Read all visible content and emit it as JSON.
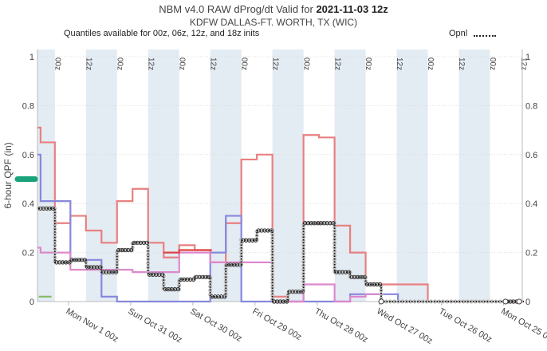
{
  "header": {
    "title_prefix": "NBM v4.0 RAW dProg/dt Valid for ",
    "title_bold": "2021-11-03 12z",
    "subtitle": "KDFW DALLAS-FT. WORTH, TX (WIC)",
    "note": "Quantiles available for 00z, 06z, 12z, and 18z inits",
    "legend_opnl": "Opnl"
  },
  "chart_data": {
    "type": "line",
    "ylabel": "6-hour QPF (in)",
    "ylim": [
      0,
      1
    ],
    "yticks": [
      "0",
      "0.2",
      "0.4",
      "0.6",
      "0.8",
      "1"
    ],
    "x_reversed": true,
    "x_tick_labels": [
      "Mon Nov 1 00z",
      "Sun Oct 31 00z",
      "Sat Oct 30 00z",
      "Fri Oct 29 00z",
      "Thu Oct 28 00z",
      "Wed Oct 27 00z",
      "Tue Oct 26 00z",
      "Mon Oct 25 00z"
    ],
    "x_tick_positions_day": [
      2,
      3,
      4,
      5,
      6,
      7,
      8,
      9
    ],
    "xlim_days_before_valid": [
      1.5,
      9.3
    ],
    "init_labels": [
      {
        "d": 1.75,
        "text": "00z"
      },
      {
        "d": 2.25,
        "text": "12z"
      },
      {
        "d": 2.75,
        "text": "00z"
      },
      {
        "d": 3.25,
        "text": "12z"
      },
      {
        "d": 3.75,
        "text": "00z"
      },
      {
        "d": 4.25,
        "text": "12z"
      },
      {
        "d": 4.75,
        "text": "00z"
      },
      {
        "d": 5.25,
        "text": "12z"
      },
      {
        "d": 5.75,
        "text": "00z"
      },
      {
        "d": 6.25,
        "text": "12z"
      },
      {
        "d": 6.75,
        "text": "00z"
      },
      {
        "d": 7.25,
        "text": "12z"
      },
      {
        "d": 7.75,
        "text": "00z"
      },
      {
        "d": 8.25,
        "text": "12z"
      },
      {
        "d": 8.75,
        "text": "00z"
      },
      {
        "d": 9.25,
        "text": "12z"
      }
    ],
    "shaded_bands": [
      [
        1.5,
        1.78
      ],
      [
        2.28,
        2.78
      ],
      [
        3.28,
        3.78
      ],
      [
        4.28,
        4.78
      ],
      [
        5.28,
        5.78
      ],
      [
        6.28,
        6.78
      ],
      [
        7.28,
        7.78
      ],
      [
        8.28,
        8.78
      ]
    ],
    "current_value_marker": 0.5,
    "series": [
      {
        "color": "#e88080",
        "steps": [
          [
            1.5,
            0.71
          ],
          [
            1.55,
            0.65
          ],
          [
            1.78,
            0.32
          ],
          [
            2.03,
            0.35
          ],
          [
            2.28,
            0.29
          ],
          [
            2.53,
            0.24
          ],
          [
            2.78,
            0.41
          ],
          [
            3.03,
            0.46
          ],
          [
            3.28,
            0.24
          ],
          [
            3.53,
            0.18
          ],
          [
            3.78,
            0.23
          ],
          [
            4.03,
            0.21
          ],
          [
            4.28,
            0.16
          ],
          [
            4.53,
            0.32
          ],
          [
            4.78,
            0.58
          ],
          [
            5.03,
            0.6
          ],
          [
            5.28,
            0.02
          ],
          [
            5.53,
            0.0
          ],
          [
            5.78,
            0.68
          ],
          [
            6.03,
            0.67
          ],
          [
            6.28,
            0.31
          ],
          [
            6.53,
            0.2
          ],
          [
            6.78,
            0.07
          ],
          [
            7.0,
            0.07
          ],
          [
            7.78,
            0.0
          ],
          [
            8.03,
            0.0
          ],
          [
            9.3,
            0.0
          ]
        ]
      },
      {
        "color": "#8888dd",
        "steps": [
          [
            1.5,
            0.6
          ],
          [
            1.55,
            0.41
          ],
          [
            1.78,
            0.41
          ],
          [
            2.03,
            0.17
          ],
          [
            2.28,
            0.17
          ],
          [
            2.53,
            0.02
          ],
          [
            2.78,
            0.0
          ],
          [
            3.53,
            0.0
          ],
          [
            4.28,
            0.2
          ],
          [
            4.53,
            0.35
          ],
          [
            4.78,
            0.0
          ],
          [
            5.28,
            0.0
          ],
          [
            6.28,
            0.0
          ],
          [
            6.53,
            0.03
          ],
          [
            6.78,
            0.03
          ],
          [
            7.3,
            0.0
          ]
        ]
      },
      {
        "color": "#dd88cc",
        "steps": [
          [
            1.5,
            0.22
          ],
          [
            1.55,
            0.2
          ],
          [
            1.78,
            0.2
          ],
          [
            2.03,
            0.13
          ],
          [
            2.28,
            0.13
          ],
          [
            2.53,
            0.13
          ],
          [
            2.78,
            0.13
          ],
          [
            3.03,
            0.12
          ],
          [
            3.28,
            0.12
          ],
          [
            3.53,
            0.12
          ],
          [
            3.78,
            0.2
          ],
          [
            4.03,
            0.2
          ],
          [
            4.28,
            0.16
          ],
          [
            4.53,
            0.16
          ],
          [
            4.78,
            0.16
          ],
          [
            5.03,
            0.16
          ],
          [
            5.28,
            0.0
          ],
          [
            5.53,
            0.0
          ],
          [
            5.78,
            0.07
          ],
          [
            6.03,
            0.07
          ],
          [
            6.28,
            0.0
          ],
          [
            6.53,
            0.02
          ],
          [
            6.78,
            0.03
          ],
          [
            7.0,
            0.03
          ]
        ]
      },
      {
        "color": "#dd4444",
        "steps": [
          [
            3.53,
            0.2
          ],
          [
            3.78,
            0.21
          ],
          [
            4.03,
            0.21
          ],
          [
            4.28,
            0.21
          ]
        ]
      },
      {
        "color": "#88bb66",
        "steps": [
          [
            1.52,
            0.02
          ],
          [
            1.7,
            0.02
          ]
        ]
      }
    ],
    "opnl": {
      "color": "#111111",
      "steps": [
        [
          1.52,
          0.38
        ],
        [
          1.78,
          0.16
        ],
        [
          2.03,
          0.17
        ],
        [
          2.28,
          0.14
        ],
        [
          2.53,
          0.12
        ],
        [
          2.78,
          0.21
        ],
        [
          3.03,
          0.24
        ],
        [
          3.28,
          0.11
        ],
        [
          3.53,
          0.05
        ],
        [
          3.78,
          0.09
        ],
        [
          4.03,
          0.1
        ],
        [
          4.28,
          0.02
        ],
        [
          4.53,
          0.15
        ],
        [
          4.78,
          0.25
        ],
        [
          5.03,
          0.29
        ],
        [
          5.28,
          0.0
        ],
        [
          5.53,
          0.04
        ],
        [
          5.78,
          0.32
        ],
        [
          6.03,
          0.32
        ],
        [
          6.28,
          0.12
        ],
        [
          6.53,
          0.1
        ],
        [
          6.78,
          0.07
        ],
        [
          7.03,
          0.0
        ],
        [
          9.03,
          0.0
        ],
        [
          9.3,
          0.0
        ]
      ]
    }
  }
}
